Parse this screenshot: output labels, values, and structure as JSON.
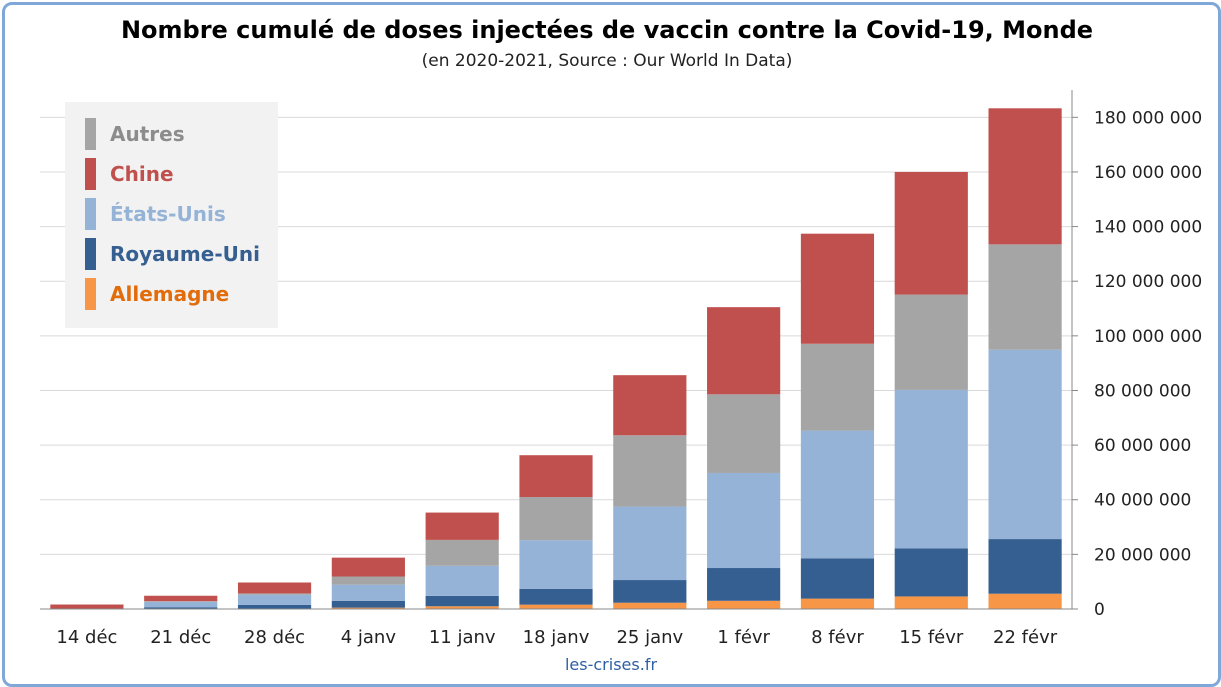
{
  "chart_data": {
    "type": "bar",
    "stacked": true,
    "title": "Nombre cumulé de doses injectées de vaccin contre la Covid-19, Monde",
    "subtitle": "(en 2020-2021, Source : Our World In Data)",
    "categories": [
      "14 déc",
      "21 déc",
      "28 déc",
      "4 janv",
      "11 janv",
      "18 janv",
      "25 janv",
      "1 févr",
      "8 févr",
      "15 févr",
      "22 févr"
    ],
    "series": [
      {
        "name": "Allemagne",
        "color": "#f79646",
        "values": [
          0,
          0,
          100000,
          500000,
          1000000,
          1600000,
          2300000,
          3000000,
          3800000,
          4600000,
          5600000
        ]
      },
      {
        "name": "Royaume-Uni",
        "color": "#355e91",
        "values": [
          140000,
          650000,
          1400000,
          2500000,
          3800000,
          5800000,
          8300000,
          12000000,
          14700000,
          17600000,
          20000000
        ]
      },
      {
        "name": "États-Unis",
        "color": "#95b3d7",
        "values": [
          0,
          2000000,
          3700000,
          5900000,
          11000000,
          17800000,
          26900000,
          34800000,
          46800000,
          58000000,
          69300000
        ]
      },
      {
        "name": "Autres",
        "color": "#a5a5a5",
        "values": [
          0,
          200000,
          500000,
          3000000,
          9500000,
          15800000,
          26100000,
          28800000,
          31800000,
          34900000,
          38600000
        ]
      },
      {
        "name": "Chine",
        "color": "#c0504d",
        "values": [
          1500000,
          2000000,
          4000000,
          6900000,
          10000000,
          15300000,
          22000000,
          31900000,
          40300000,
          44900000,
          49800000
        ]
      }
    ],
    "legend_order": [
      "Autres",
      "Chine",
      "États-Unis",
      "Royaume-Uni",
      "Allemagne"
    ],
    "ylim": [
      0,
      190000000
    ],
    "yticks": [
      0,
      20000000,
      40000000,
      60000000,
      80000000,
      100000000,
      120000000,
      140000000,
      160000000,
      180000000
    ],
    "ytick_labels": [
      "0",
      "20 000 000",
      "40 000 000",
      "60 000 000",
      "80 000 000",
      "100 000 000",
      "120 000 000",
      "140 000 000",
      "160 000 000",
      "180 000 000"
    ],
    "xlabel": "",
    "ylabel": "",
    "grid": true,
    "legend_position": "top-left",
    "y_axis_side": "right"
  },
  "credit": "les-crises.fr",
  "colors": {
    "frame": "#7fa7d8",
    "legend_bg": "#f2f2f2",
    "grid": "#d9d9d9"
  }
}
